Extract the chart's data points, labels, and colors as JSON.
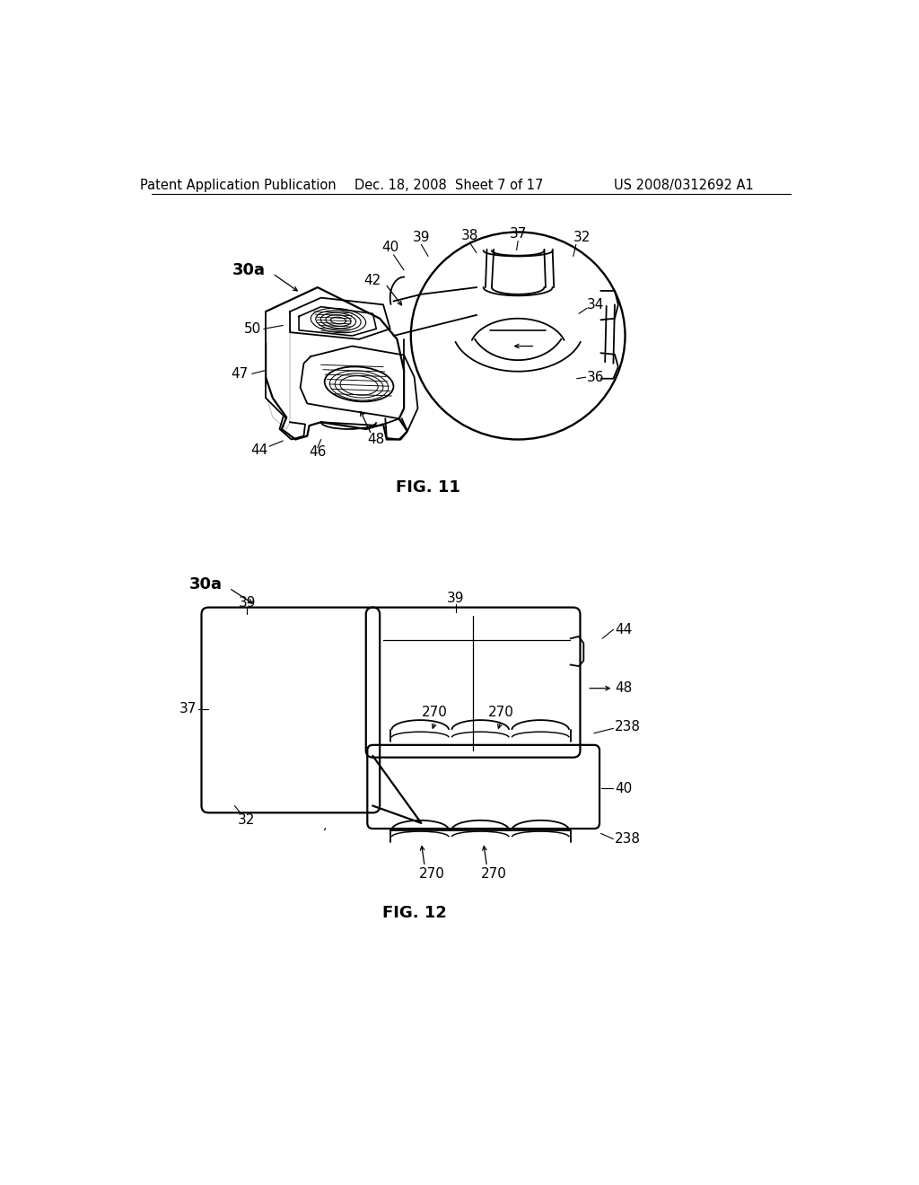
{
  "bg_color": "#ffffff",
  "text_color": "#000000",
  "line_color": "#000000",
  "header_left": "Patent Application Publication",
  "header_center": "Dec. 18, 2008  Sheet 7 of 17",
  "header_right": "US 2008/0312692 A1",
  "fig11_label": "FIG. 11",
  "fig12_label": "FIG. 12",
  "line_width": 1.3,
  "header_fontsize": 10.5,
  "label_fontsize": 11,
  "bold_label_fontsize": 12,
  "fig_label_fontsize": 13
}
